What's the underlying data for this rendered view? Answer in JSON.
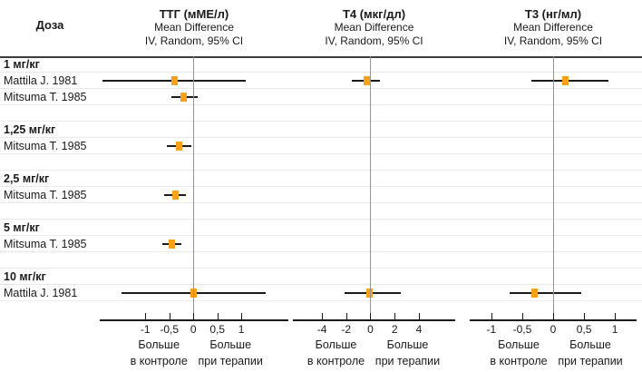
{
  "chart_data": {
    "type": "forest",
    "dose_column_header": "Доза",
    "panels": [
      {
        "id": "ttg",
        "title": "ТТГ (мМЕ/л)",
        "subtitle_line1": "Mean Difference",
        "subtitle_line2": "IV, Random, 95% CI",
        "xlim": [
          -1.95,
          1.98
        ],
        "ticks": [
          -1,
          -0.5,
          0,
          0.5,
          1
        ],
        "tick_labels": [
          "-1",
          "-0,5",
          "0",
          "0,5",
          "1"
        ],
        "left_direction_label": [
          "Больше",
          "в контроле"
        ],
        "right_direction_label": [
          "Больше",
          "при терапии"
        ]
      },
      {
        "id": "t4",
        "title": "Т4 (мкг/дл)",
        "subtitle_line1": "Mean Difference",
        "subtitle_line2": "IV, Random, 95% CI",
        "xlim": [
          -6.4,
          7.0
        ],
        "ticks": [
          -4,
          -2,
          0,
          2,
          4
        ],
        "tick_labels": [
          "-4",
          "-2",
          "0",
          "2",
          "4"
        ],
        "left_direction_label": [
          "Больше",
          "в контроле"
        ],
        "right_direction_label": [
          "Больше",
          "при терапии"
        ]
      },
      {
        "id": "t3",
        "title": "Т3 (нг/мл)",
        "subtitle_line1": "Mean Difference",
        "subtitle_line2": "IV, Random, 95% CI",
        "xlim": [
          -1.35,
          1.35
        ],
        "ticks": [
          -1,
          -0.5,
          0,
          0.5,
          1
        ],
        "tick_labels": [
          "-1",
          "-0,5",
          "0",
          "0,5",
          "1"
        ],
        "left_direction_label": [
          "Больше",
          "в контроле"
        ],
        "right_direction_label": [
          "Больше",
          "при терапии"
        ]
      }
    ],
    "groups": [
      {
        "dose": "1 мг/кг",
        "studies": [
          {
            "name": "Mattila J. 1981",
            "estimates": {
              "ttg": {
                "mean": -0.4,
                "ci_low": -1.9,
                "ci_high": 1.1
              },
              "t4": {
                "mean": -0.3,
                "ci_low": -1.5,
                "ci_high": 0.8
              },
              "t3": {
                "mean": 0.2,
                "ci_low": -0.35,
                "ci_high": 0.9
              }
            }
          },
          {
            "name": "Mitsuma T. 1985",
            "estimates": {
              "ttg": {
                "mean": -0.2,
                "ci_low": -0.45,
                "ci_high": 0.1
              }
            }
          }
        ]
      },
      {
        "dose": "1,25 мг/кг",
        "studies": [
          {
            "name": "Mitsuma T. 1985",
            "estimates": {
              "ttg": {
                "mean": -0.3,
                "ci_low": -0.55,
                "ci_high": -0.05
              }
            }
          }
        ]
      },
      {
        "dose": "2,5 мг/кг",
        "studies": [
          {
            "name": "Mitsuma T. 1985",
            "estimates": {
              "ttg": {
                "mean": -0.38,
                "ci_low": -0.6,
                "ci_high": -0.15
              }
            }
          }
        ]
      },
      {
        "dose": "5 мг/кг",
        "studies": [
          {
            "name": "Mitsuma T. 1985",
            "estimates": {
              "ttg": {
                "mean": -0.45,
                "ci_low": -0.65,
                "ci_high": -0.25
              }
            }
          }
        ]
      },
      {
        "dose": "10 мг/кг",
        "studies": [
          {
            "name": "Mattila J. 1981",
            "estimates": {
              "ttg": {
                "mean": 0.0,
                "ci_low": -1.5,
                "ci_high": 1.5
              },
              "t4": {
                "mean": -0.1,
                "ci_low": -2.1,
                "ci_high": 2.5
              },
              "t3": {
                "mean": -0.3,
                "ci_low": -0.7,
                "ci_high": 0.45
              }
            }
          }
        ]
      }
    ],
    "colors": {
      "marker": "#F9A11B",
      "ci_line": "#1a1a1a",
      "zero_line": "#949494",
      "row_separator": "#e9e9e9",
      "header_rule": "#3a3a3a",
      "text": "#1a1a1a"
    }
  }
}
